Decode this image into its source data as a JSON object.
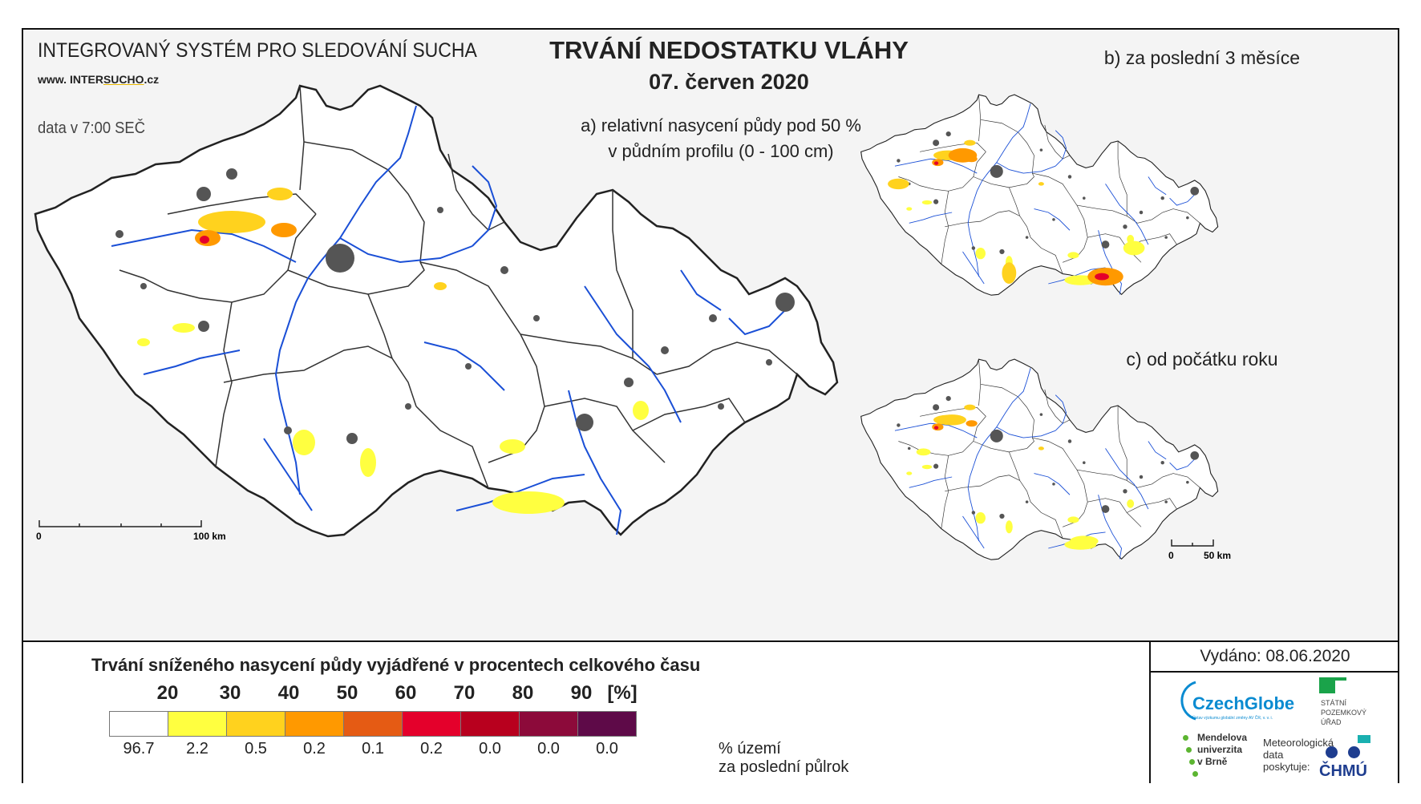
{
  "header": {
    "system_title": "INTEGROVANÝ SYSTÉM PRO SLEDOVÁNÍ SUCHA",
    "url_prefix": "www. ",
    "url_main": "INTER",
    "url_accent": "SUCHO",
    "url_suffix": ".cz",
    "data_time": "data v 7:00 SEČ",
    "title": "TRVÁNÍ NEDOSTATKU VLÁHY",
    "date": "07. červen 2020"
  },
  "panels": {
    "a_line1": "a) relativní nasycení půdy pod 50 %",
    "a_line2": "v půdním profilu (0 - 100 cm)",
    "b": "b) za poslední 3 měsíce",
    "c": "c) od počátku roku"
  },
  "scale_main": {
    "start": "0",
    "end": "100 km"
  },
  "scale_small": {
    "start": "0",
    "end": "50 km"
  },
  "legend": {
    "title": "Trvání sníženého nasycení půdy vyjádřené v procentech celkového času",
    "thresholds": [
      "20",
      "30",
      "40",
      "50",
      "60",
      "70",
      "80",
      "90"
    ],
    "unit": "[%]",
    "colors": [
      "#ffffff",
      "#ffff40",
      "#ffd21e",
      "#ff9900",
      "#e55b14",
      "#e4002b",
      "#b8001e",
      "#8c0a3a",
      "#5e0a48"
    ],
    "percentages": [
      "96.7",
      "2.2",
      "0.5",
      "0.2",
      "0.1",
      "0.2",
      "0.0",
      "0.0",
      "0.0"
    ],
    "area_label_1": "% území",
    "area_label_2": "za poslední půlrok"
  },
  "issued": "Vydáno: 08.06.2020",
  "logos": {
    "czechglobe": "CzechGlobe",
    "czechglobe_sub": "Ústav výzkumu globální změny AV ČR, v. v. i.",
    "spu": [
      "STÁTNÍ",
      "POZEMKOVÝ",
      "ÚŘAD"
    ],
    "mendel": [
      "Mendelova",
      "univerzita",
      "v Brně"
    ],
    "meteo": [
      "Meteorologická",
      "data",
      "poskytuje:"
    ],
    "chmu": "ČHMÚ"
  },
  "map_colors": {
    "boundary": "#222222",
    "river": "#1a4fd6",
    "urban": "#555555",
    "land": "#ffffff"
  }
}
